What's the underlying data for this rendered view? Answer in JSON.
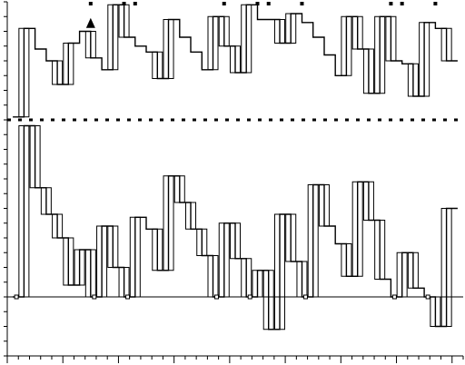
{
  "chart_data": {
    "type": "line",
    "title": "",
    "xlabel": "",
    "ylabel": "",
    "x_range": [
      0,
      41
    ],
    "y_range": [
      -20,
      100
    ],
    "grid": false,
    "legend": "none",
    "colors": {
      "axis": "#000000",
      "line": "#000000",
      "band_outline": "#000000",
      "band_accent": "#2b2b8a",
      "background": "#ffffff"
    },
    "reference_lines": [
      {
        "name": "upper-dotted-reference",
        "y": 60
      },
      {
        "name": "lower-dotted-reference",
        "y": 0
      }
    ],
    "top_markers_x": [
      7.5,
      10.5,
      11.5,
      19.5,
      22.5,
      23.5,
      26.5,
      34.5,
      35.5,
      38.5
    ],
    "triangle_marker": {
      "x": 7.5,
      "y": 93
    },
    "series": [
      {
        "values": [
          [
            0.5,
            61
          ],
          [
            1.5,
            61
          ],
          [
            1.5,
            91
          ],
          [
            2.5,
            91
          ],
          [
            2.5,
            84
          ],
          [
            3.5,
            84
          ],
          [
            3.5,
            80
          ],
          [
            4.5,
            80
          ],
          [
            4.5,
            72
          ],
          [
            5.5,
            72
          ],
          [
            5.5,
            86
          ],
          [
            6.5,
            86
          ],
          [
            6.5,
            90
          ],
          [
            7.5,
            90
          ],
          [
            7.5,
            81
          ],
          [
            8.5,
            81
          ],
          [
            8.5,
            77
          ],
          [
            9.5,
            77
          ],
          [
            9.5,
            99
          ],
          [
            10.5,
            99
          ],
          [
            10.5,
            88
          ],
          [
            11.5,
            88
          ],
          [
            11.5,
            85
          ],
          [
            12.5,
            85
          ],
          [
            12.5,
            83
          ],
          [
            13.5,
            83
          ],
          [
            13.5,
            74
          ],
          [
            14.5,
            74
          ],
          [
            14.5,
            94
          ],
          [
            15.5,
            94
          ],
          [
            15.5,
            88
          ],
          [
            16.5,
            88
          ],
          [
            16.5,
            83
          ],
          [
            17.5,
            83
          ],
          [
            17.5,
            77
          ],
          [
            18.5,
            77
          ],
          [
            18.5,
            95
          ],
          [
            19.5,
            95
          ],
          [
            19.5,
            85
          ],
          [
            20.5,
            85
          ],
          [
            20.5,
            76
          ],
          [
            21.5,
            76
          ],
          [
            21.5,
            99
          ],
          [
            22.5,
            99
          ],
          [
            22.5,
            94
          ],
          [
            23.5,
            94
          ],
          [
            23.5,
            94
          ],
          [
            24.5,
            94
          ],
          [
            24.5,
            86
          ],
          [
            25.5,
            86
          ],
          [
            25.5,
            96
          ],
          [
            26.5,
            96
          ],
          [
            26.5,
            93
          ],
          [
            27.5,
            93
          ],
          [
            27.5,
            88
          ],
          [
            28.5,
            88
          ],
          [
            28.5,
            82
          ],
          [
            29.5,
            82
          ],
          [
            29.5,
            75
          ],
          [
            30.5,
            75
          ],
          [
            30.5,
            95
          ],
          [
            31.5,
            95
          ],
          [
            31.5,
            84
          ],
          [
            32.5,
            84
          ],
          [
            32.5,
            69
          ],
          [
            33.5,
            69
          ],
          [
            33.5,
            95
          ],
          [
            34.5,
            95
          ],
          [
            34.5,
            80
          ],
          [
            35.5,
            80
          ],
          [
            35.5,
            79
          ],
          [
            36.5,
            79
          ],
          [
            36.5,
            68
          ],
          [
            37.5,
            68
          ],
          [
            37.5,
            93
          ],
          [
            38.5,
            93
          ],
          [
            38.5,
            91
          ],
          [
            39.5,
            91
          ],
          [
            39.5,
            80
          ],
          [
            40.5,
            80
          ]
        ]
      },
      {
        "values": [
          [
            0.5,
            0
          ],
          [
            1.5,
            0
          ],
          [
            1.5,
            58
          ],
          [
            2.5,
            58
          ],
          [
            2.5,
            37
          ],
          [
            3.5,
            37
          ],
          [
            3.5,
            28
          ],
          [
            4.5,
            28
          ],
          [
            4.5,
            20
          ],
          [
            5.5,
            20
          ],
          [
            5.5,
            4
          ],
          [
            6.5,
            4
          ],
          [
            6.5,
            16
          ],
          [
            7.5,
            16
          ],
          [
            7.5,
            0
          ],
          [
            8.5,
            0
          ],
          [
            8.5,
            24
          ],
          [
            9.5,
            24
          ],
          [
            9.5,
            10
          ],
          [
            10.5,
            10
          ],
          [
            10.5,
            0
          ],
          [
            11.5,
            0
          ],
          [
            11.5,
            27
          ],
          [
            12.5,
            27
          ],
          [
            12.5,
            23
          ],
          [
            13.5,
            23
          ],
          [
            13.5,
            9
          ],
          [
            14.5,
            9
          ],
          [
            14.5,
            41
          ],
          [
            15.5,
            41
          ],
          [
            15.5,
            32
          ],
          [
            16.5,
            32
          ],
          [
            16.5,
            23
          ],
          [
            17.5,
            23
          ],
          [
            17.5,
            14
          ],
          [
            18.5,
            14
          ],
          [
            18.5,
            0
          ],
          [
            19.5,
            0
          ],
          [
            19.5,
            25
          ],
          [
            20.5,
            25
          ],
          [
            20.5,
            13
          ],
          [
            21.5,
            13
          ],
          [
            21.5,
            0
          ],
          [
            22.5,
            0
          ],
          [
            22.5,
            9
          ],
          [
            23.5,
            9
          ],
          [
            23.5,
            -11
          ],
          [
            24.5,
            -11
          ],
          [
            24.5,
            28
          ],
          [
            25.5,
            28
          ],
          [
            25.5,
            12
          ],
          [
            26.5,
            12
          ],
          [
            26.5,
            0
          ],
          [
            27.5,
            0
          ],
          [
            27.5,
            38
          ],
          [
            28.5,
            38
          ],
          [
            28.5,
            24
          ],
          [
            29.5,
            24
          ],
          [
            29.5,
            18
          ],
          [
            30.5,
            18
          ],
          [
            30.5,
            7
          ],
          [
            31.5,
            7
          ],
          [
            31.5,
            39
          ],
          [
            32.5,
            39
          ],
          [
            32.5,
            26
          ],
          [
            33.5,
            26
          ],
          [
            33.5,
            6
          ],
          [
            34.5,
            6
          ],
          [
            34.5,
            0
          ],
          [
            35.5,
            0
          ],
          [
            35.5,
            15
          ],
          [
            36.5,
            15
          ],
          [
            36.5,
            3
          ],
          [
            37.5,
            3
          ],
          [
            37.5,
            0
          ],
          [
            38.5,
            0
          ],
          [
            38.5,
            -10
          ],
          [
            39.5,
            -10
          ],
          [
            39.5,
            30
          ],
          [
            40.5,
            30
          ]
        ]
      }
    ]
  }
}
